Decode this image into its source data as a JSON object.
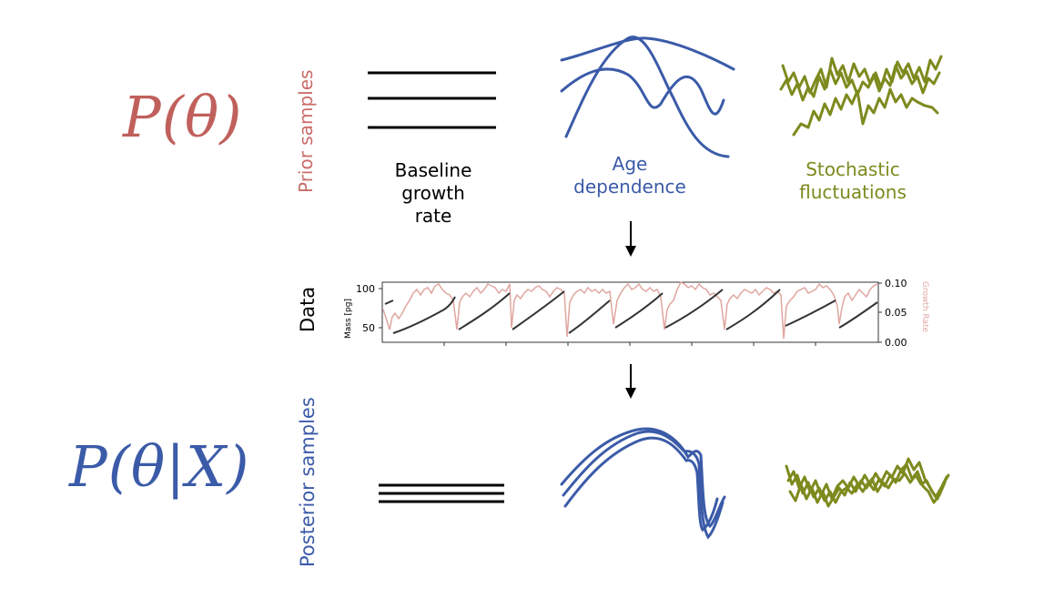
{
  "prior": {
    "math": "P(θ)",
    "row_label": "Prior samples",
    "captions": {
      "baseline_line1": "Baseline growth",
      "baseline_line2": "rate",
      "age_line1": "Age",
      "age_line2": "dependence",
      "stochastic_line1": "Stochastic",
      "stochastic_line2": "fluctuations"
    }
  },
  "posterior": {
    "math": "P(θ|X)",
    "row_label": "Posterior samples"
  },
  "data": {
    "row_label": "Data",
    "left_axis_label": "Mass [pg]",
    "left_ticks": [
      "100",
      "50"
    ],
    "right_axis_label": "Growth Rate",
    "right_ticks": [
      "0.10",
      "0.05",
      "0.00"
    ]
  },
  "colors": {
    "prior": "#c0605c",
    "posterior": "#3b5ba8",
    "age": "#3b5ba8",
    "stochastic": "#7d8a1e",
    "growth_rate": "#e0a6a0",
    "mass": "#333333"
  }
}
